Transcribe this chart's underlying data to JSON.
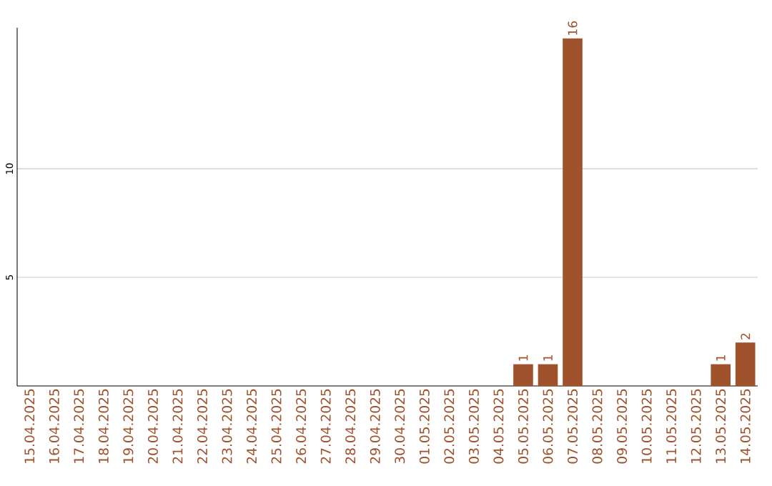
{
  "chart_data": {
    "type": "bar",
    "categories": [
      "15.04.2025",
      "16.04.2025",
      "17.04.2025",
      "18.04.2025",
      "19.04.2025",
      "20.04.2025",
      "21.04.2025",
      "22.04.2025",
      "23.04.2025",
      "24.04.2025",
      "25.04.2025",
      "26.04.2025",
      "27.04.2025",
      "28.04.2025",
      "29.04.2025",
      "30.04.2025",
      "01.05.2025",
      "02.05.2025",
      "03.05.2025",
      "04.05.2025",
      "05.05.2025",
      "06.05.2025",
      "07.05.2025",
      "08.05.2025",
      "09.05.2025",
      "10.05.2025",
      "11.05.2025",
      "12.05.2025",
      "13.05.2025",
      "14.05.2025"
    ],
    "values": [
      0,
      0,
      0,
      0,
      0,
      0,
      0,
      0,
      0,
      0,
      0,
      0,
      0,
      0,
      0,
      0,
      0,
      0,
      0,
      0,
      1,
      1,
      16,
      0,
      0,
      0,
      0,
      0,
      1,
      2
    ],
    "value_labels": [
      null,
      null,
      null,
      null,
      null,
      null,
      null,
      null,
      null,
      null,
      null,
      null,
      null,
      null,
      null,
      null,
      null,
      null,
      null,
      null,
      "1",
      "1",
      "16",
      null,
      null,
      null,
      null,
      null,
      "1",
      "2"
    ],
    "color": "#a0522d",
    "ylim": [
      0,
      16.5
    ],
    "yticks": [
      5,
      10
    ],
    "grid": "y"
  }
}
